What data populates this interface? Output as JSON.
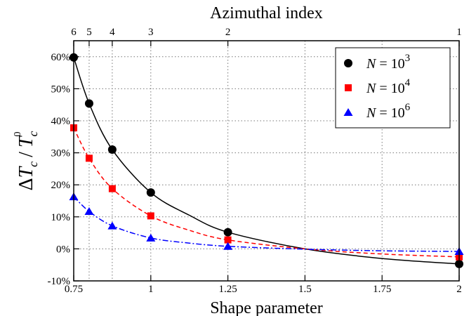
{
  "chart_data": {
    "type": "line",
    "xlabel": "Shape parameter",
    "top_axis_label": "Azimuthal index",
    "ylabel": {
      "delta": "Δ",
      "var": "T",
      "sub": "c",
      "slash": "/",
      "sup0": "0"
    },
    "xlim": [
      0.75,
      2.0
    ],
    "ylim": [
      -10,
      65
    ],
    "xticks": [
      {
        "v": 0.75,
        "label": "0.75"
      },
      {
        "v": 1.0,
        "label": "1"
      },
      {
        "v": 1.25,
        "label": "1.25"
      },
      {
        "v": 1.5,
        "label": "1.5"
      },
      {
        "v": 1.75,
        "label": "1.75"
      },
      {
        "v": 2.0,
        "label": "2"
      }
    ],
    "yticks": [
      {
        "v": -10,
        "label": "-10%"
      },
      {
        "v": 0,
        "label": "0%"
      },
      {
        "v": 10,
        "label": "10%"
      },
      {
        "v": 20,
        "label": "20%"
      },
      {
        "v": 30,
        "label": "30%"
      },
      {
        "v": 40,
        "label": "40%"
      },
      {
        "v": 50,
        "label": "50%"
      },
      {
        "v": 60,
        "label": "60%"
      }
    ],
    "top_ticks": [
      {
        "v": 0.75,
        "label": "6"
      },
      {
        "v": 0.8,
        "label": "5"
      },
      {
        "v": 0.875,
        "label": "4"
      },
      {
        "v": 1.0,
        "label": "3"
      },
      {
        "v": 1.25,
        "label": "2"
      },
      {
        "v": 2.0,
        "label": "1"
      }
    ],
    "grid": "dotted",
    "legend_position": "top-right",
    "series": [
      {
        "name_prefix": "N = 10",
        "exponent": "3",
        "marker": "circle",
        "color": "#000000",
        "dash": "none",
        "x": [
          0.75,
          0.8,
          0.875,
          1.0,
          1.25,
          2.0
        ],
        "y": [
          59.8,
          45.4,
          31.0,
          17.6,
          5.2,
          -4.7
        ],
        "fit": [
          [
            0.75,
            59.8
          ],
          [
            0.8,
            45.4
          ],
          [
            0.875,
            31.0
          ],
          [
            1.0,
            17.6
          ],
          [
            1.125,
            10.5
          ],
          [
            1.25,
            5.2
          ],
          [
            1.5,
            0.0
          ],
          [
            1.75,
            -3.0
          ],
          [
            2.0,
            -4.7
          ]
        ]
      },
      {
        "name_prefix": "N = 10",
        "exponent": "4",
        "marker": "square",
        "color": "#ff0000",
        "dash": "6,4",
        "x": [
          0.75,
          0.8,
          0.875,
          1.0,
          1.25,
          2.0
        ],
        "y": [
          37.8,
          28.3,
          18.8,
          10.3,
          2.8,
          -2.5
        ],
        "fit": [
          [
            0.75,
            37.8
          ],
          [
            0.8,
            28.3
          ],
          [
            0.875,
            18.8
          ],
          [
            1.0,
            10.3
          ],
          [
            1.125,
            5.8
          ],
          [
            1.25,
            2.8
          ],
          [
            1.5,
            0.0
          ],
          [
            1.75,
            -1.6
          ],
          [
            2.0,
            -2.5
          ]
        ]
      },
      {
        "name_prefix": "N = 10",
        "exponent": "6",
        "marker": "triangle",
        "color": "#0000ff",
        "dash": "8,3,2,3",
        "x": [
          0.75,
          0.8,
          0.875,
          1.0,
          1.25,
          2.0
        ],
        "y": [
          16.3,
          11.7,
          7.2,
          3.4,
          0.8,
          -0.8
        ],
        "fit": [
          [
            0.75,
            16.3
          ],
          [
            0.8,
            11.7
          ],
          [
            0.875,
            7.2
          ],
          [
            1.0,
            3.4
          ],
          [
            1.125,
            1.8
          ],
          [
            1.25,
            0.8
          ],
          [
            1.5,
            -0.1
          ],
          [
            1.75,
            -0.6
          ],
          [
            2.0,
            -0.8
          ]
        ]
      }
    ]
  }
}
